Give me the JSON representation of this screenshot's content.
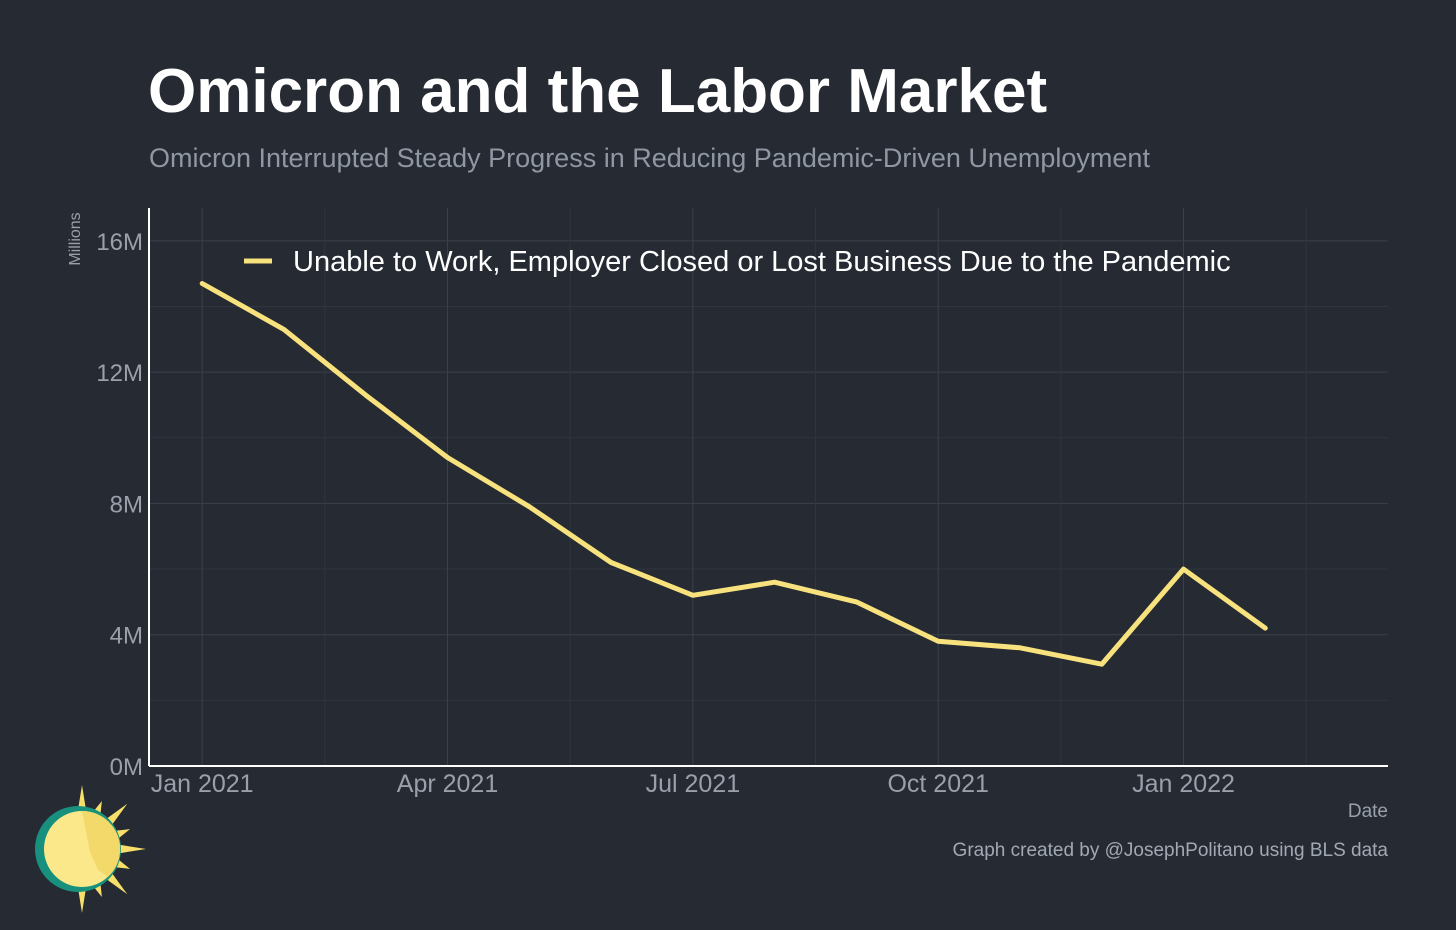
{
  "colors": {
    "background": "#252a33",
    "line": "#f8e27e",
    "grid": "#3b414b",
    "axis": "#ffffff",
    "tick_label": "#9aa0aa",
    "logo_teal": "#17917e",
    "logo_sun": "#f7df6a",
    "logo_face": "#fbe88a"
  },
  "credit": "Graph created by @JosephPolitano using BLS data",
  "logo_icon": "sun-logo-icon",
  "chart_data": {
    "type": "line",
    "title": "Omicron and the Labor Market",
    "subtitle": "Omicron Interrupted Steady Progress in Reducing Pandemic-Driven Unemployment",
    "xlabel": "Date",
    "ylabel": "Millions",
    "x": [
      "2021-01",
      "2021-02",
      "2021-03",
      "2021-04",
      "2021-05",
      "2021-06",
      "2021-07",
      "2021-08",
      "2021-09",
      "2021-10",
      "2021-11",
      "2021-12",
      "2022-01",
      "2022-02"
    ],
    "x_tick_labels": [
      "Jan 2021",
      "Apr 2021",
      "Jul 2021",
      "Oct 2021",
      "Jan 2022"
    ],
    "x_tick_values": [
      "2021-01",
      "2021-04",
      "2021-07",
      "2021-10",
      "2022-01"
    ],
    "y_tick_labels": [
      "0M",
      "4M",
      "8M",
      "12M",
      "16M"
    ],
    "y_tick_values": [
      0,
      4,
      8,
      12,
      16
    ],
    "ylim": [
      0,
      17
    ],
    "grid": true,
    "legend_position": "top-left",
    "series": [
      {
        "name": "Unable to Work, Employer Closed or Lost Business Due to the Pandemic",
        "values": [
          14.7,
          13.3,
          11.3,
          9.4,
          7.9,
          6.2,
          5.2,
          5.6,
          5.0,
          3.8,
          3.6,
          3.1,
          6.0,
          4.2
        ]
      }
    ]
  }
}
